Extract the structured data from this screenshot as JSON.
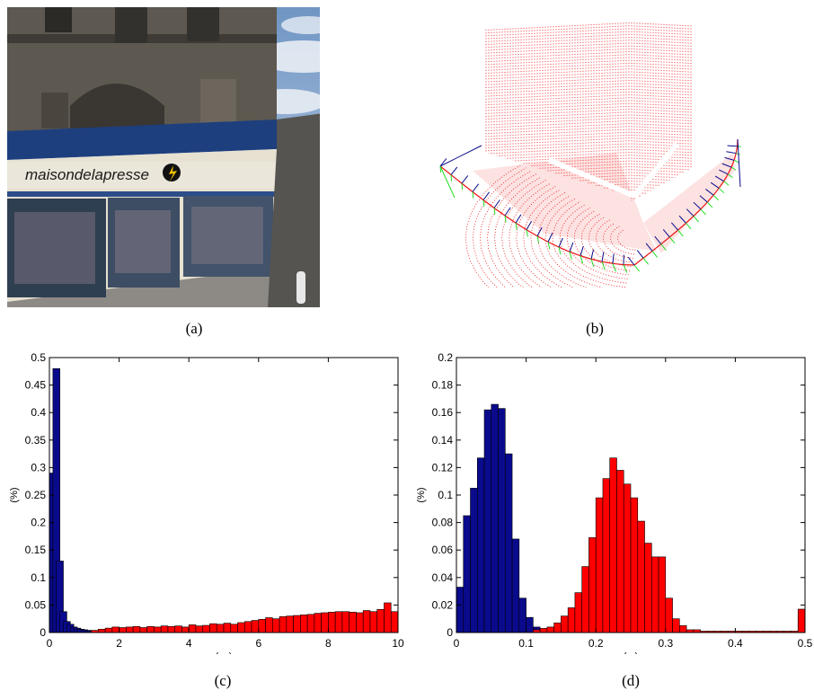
{
  "captions": {
    "a": "(a)",
    "b": "(b)",
    "c": "(c)",
    "d": "(d)"
  },
  "photo": {
    "shop_sign": "maisondelapresse",
    "colors": {
      "sky": "#8fb1d6",
      "awning": "#1d3f7e",
      "facade": "#5d5850",
      "pavement": "#8d8a85"
    }
  },
  "colors": {
    "blue": "#0a0a8c",
    "red": "#ff0000",
    "green": "#22dd22",
    "point_cloud": "#ee1111"
  },
  "chart_data": [
    {
      "id": "c",
      "type": "bar",
      "xlabel": "(px)",
      "ylabel": "(%)",
      "xlim": [
        0,
        10
      ],
      "ylim": [
        0,
        0.5
      ],
      "bin_width": 0.2,
      "xticks": [
        "0",
        "2",
        "4",
        "6",
        "8",
        "10"
      ],
      "yticks": [
        "0",
        "0.05",
        "0.1",
        "0.15",
        "0.2",
        "0.25",
        "0.3",
        "0.35",
        "0.4",
        "0.45",
        "0.5"
      ],
      "series": [
        {
          "color": "#0a0a8c",
          "x": [
            0.0,
            0.1,
            0.2,
            0.3,
            0.4,
            0.5,
            0.6,
            0.7,
            0.8,
            0.9,
            1.0,
            1.1,
            1.2,
            1.3,
            1.4,
            1.5,
            1.6
          ],
          "values": [
            0.29,
            0.48,
            0.13,
            0.038,
            0.02,
            0.015,
            0.01,
            0.008,
            0.006,
            0.005,
            0.004,
            0.003,
            0.003,
            0.002,
            0.002,
            0.002,
            0.001
          ]
        },
        {
          "color": "#ff0000",
          "x": [
            1.2,
            1.4,
            1.6,
            1.8,
            2.0,
            2.2,
            2.4,
            2.6,
            2.8,
            3.0,
            3.2,
            3.4,
            3.6,
            3.8,
            4.0,
            4.2,
            4.4,
            4.6,
            4.8,
            5.0,
            5.2,
            5.4,
            5.6,
            5.8,
            6.0,
            6.2,
            6.4,
            6.6,
            6.8,
            7.0,
            7.2,
            7.4,
            7.6,
            7.8,
            8.0,
            8.2,
            8.4,
            8.6,
            8.8,
            9.0,
            9.2,
            9.4,
            9.6,
            9.8
          ],
          "values": [
            0.004,
            0.006,
            0.008,
            0.01,
            0.009,
            0.01,
            0.011,
            0.009,
            0.011,
            0.01,
            0.012,
            0.011,
            0.012,
            0.01,
            0.014,
            0.012,
            0.013,
            0.016,
            0.015,
            0.017,
            0.015,
            0.018,
            0.02,
            0.022,
            0.024,
            0.027,
            0.025,
            0.029,
            0.03,
            0.031,
            0.032,
            0.033,
            0.035,
            0.036,
            0.037,
            0.038,
            0.038,
            0.037,
            0.036,
            0.04,
            0.038,
            0.042,
            0.054,
            0.038
          ]
        }
      ]
    },
    {
      "id": "d",
      "type": "bar",
      "xlabel": "(m)",
      "ylabel": "(%)",
      "xlim": [
        0,
        0.5
      ],
      "ylim": [
        0,
        0.2
      ],
      "bin_width": 0.01,
      "xticks": [
        "0",
        "0.1",
        "0.2",
        "0.3",
        "0.4",
        "0.5"
      ],
      "yticks": [
        "0",
        "0.02",
        "0.04",
        "0.06",
        "0.08",
        "0.1",
        "0.12",
        "0.14",
        "0.16",
        "0.18",
        "0.2"
      ],
      "series": [
        {
          "color": "#0a0a8c",
          "x": [
            0.0,
            0.01,
            0.02,
            0.03,
            0.04,
            0.05,
            0.06,
            0.07,
            0.08,
            0.09,
            0.1,
            0.11,
            0.12,
            0.13,
            0.49
          ],
          "values": [
            0.033,
            0.085,
            0.105,
            0.127,
            0.162,
            0.166,
            0.163,
            0.13,
            0.068,
            0.025,
            0.011,
            0.004,
            0.002,
            0.001,
            0.012
          ]
        },
        {
          "color": "#ff0000",
          "x": [
            0.11,
            0.12,
            0.13,
            0.14,
            0.15,
            0.16,
            0.17,
            0.18,
            0.19,
            0.2,
            0.21,
            0.22,
            0.23,
            0.24,
            0.25,
            0.26,
            0.27,
            0.28,
            0.29,
            0.3,
            0.31,
            0.32,
            0.33,
            0.34,
            0.35,
            0.36,
            0.37,
            0.38,
            0.39,
            0.4,
            0.41,
            0.42,
            0.43,
            0.44,
            0.45,
            0.46,
            0.47,
            0.48,
            0.49
          ],
          "values": [
            0.002,
            0.003,
            0.004,
            0.007,
            0.012,
            0.018,
            0.029,
            0.048,
            0.069,
            0.098,
            0.112,
            0.127,
            0.118,
            0.108,
            0.098,
            0.081,
            0.065,
            0.055,
            0.055,
            0.025,
            0.01,
            0.005,
            0.002,
            0.002,
            0.001,
            0.001,
            0.001,
            0.001,
            0.001,
            0.001,
            0.001,
            0.001,
            0.001,
            0.001,
            0.001,
            0.001,
            0.001,
            0.001,
            0.017
          ]
        }
      ]
    }
  ]
}
